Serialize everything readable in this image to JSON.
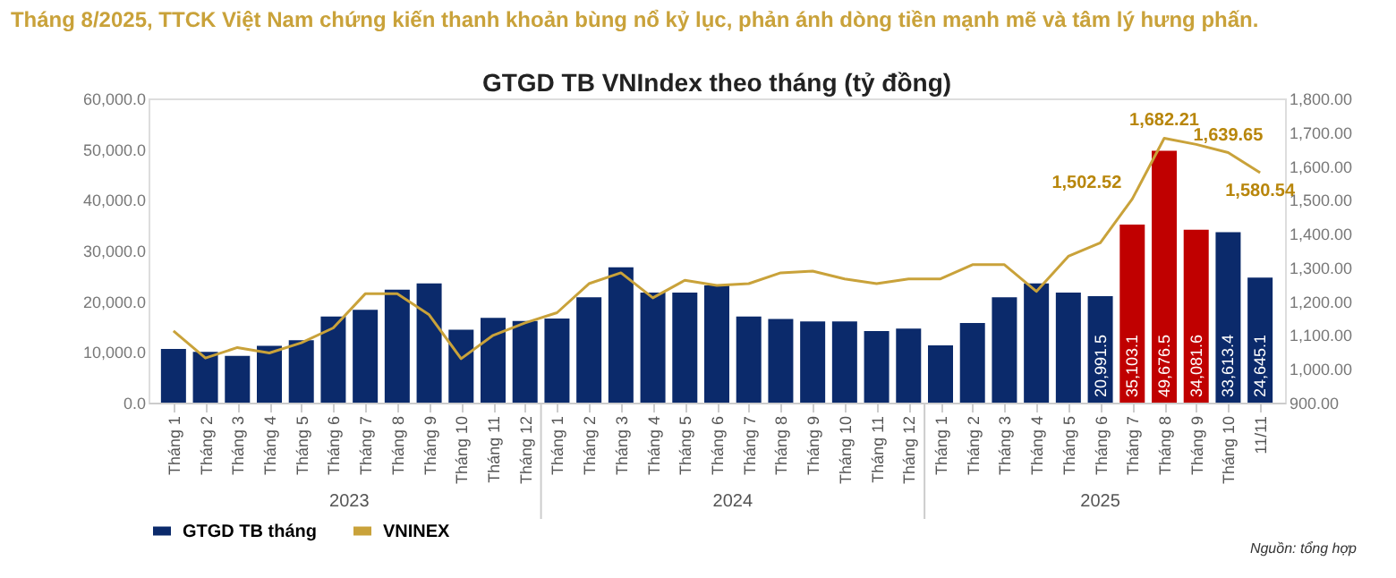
{
  "chart_data": {
    "type": "bar",
    "title": "Tháng 8/2025, TTCK Việt Nam chứng kiến thanh khoản bùng nổ kỷ lục, phản ánh dòng tiền mạnh mẽ và tâm lý hưng phấn.",
    "subtitle": "GTGD TB VNIndex theo tháng (tỷ đồng)",
    "categories": [
      "Tháng 1",
      "Tháng 2",
      "Tháng 3",
      "Tháng 4",
      "Tháng 5",
      "Tháng 6",
      "Tháng 7",
      "Tháng 8",
      "Tháng 9",
      "Tháng 10",
      "Tháng 11",
      "Tháng 12",
      "Tháng 1",
      "Tháng 2",
      "Tháng 3",
      "Tháng 4",
      "Tháng 5",
      "Tháng 6",
      "Tháng 7",
      "Tháng 8",
      "Tháng 9",
      "Tháng 10",
      "Tháng 11",
      "Tháng 12",
      "Tháng 1",
      "Tháng 2",
      "Tháng 3",
      "Tháng 4",
      "Tháng 5",
      "Tháng 6",
      "Tháng 7",
      "Tháng 8",
      "Tháng 9",
      "Tháng 10",
      "11/11"
    ],
    "series": [
      {
        "name": "GTGD TB tháng",
        "color": "#0b2a6b",
        "colors": [
          "#0b2a6b",
          "#0b2a6b",
          "#0b2a6b",
          "#0b2a6b",
          "#0b2a6b",
          "#0b2a6b",
          "#0b2a6b",
          "#0b2a6b",
          "#0b2a6b",
          "#0b2a6b",
          "#0b2a6b",
          "#0b2a6b",
          "#0b2a6b",
          "#0b2a6b",
          "#0b2a6b",
          "#0b2a6b",
          "#0b2a6b",
          "#0b2a6b",
          "#0b2a6b",
          "#0b2a6b",
          "#0b2a6b",
          "#0b2a6b",
          "#0b2a6b",
          "#0b2a6b",
          "#0b2a6b",
          "#0b2a6b",
          "#0b2a6b",
          "#0b2a6b",
          "#0b2a6b",
          "#0b2a6b",
          "#c00000",
          "#c00000",
          "#c00000",
          "#0b2a6b",
          "#0b2a6b"
        ],
        "values": [
          10600,
          10000,
          9200,
          11200,
          12300,
          17000,
          18300,
          22300,
          23500,
          14400,
          16700,
          16100,
          16600,
          20800,
          26700,
          21700,
          21700,
          23100,
          17000,
          16500,
          16000,
          16000,
          14100,
          14600,
          11300,
          15700,
          20800,
          23500,
          21700,
          20991.5,
          35103.1,
          49676.5,
          34081.6,
          33613.4,
          24645.1
        ],
        "value_labels": [
          null,
          null,
          null,
          null,
          null,
          null,
          null,
          null,
          null,
          null,
          null,
          null,
          null,
          null,
          null,
          null,
          null,
          null,
          null,
          null,
          null,
          null,
          null,
          null,
          null,
          null,
          null,
          null,
          null,
          "20,991.5",
          "35,103.1",
          "49,676.5",
          "34,081.6",
          "33,613.4",
          "24,645.1"
        ]
      },
      {
        "name": "VNINEX",
        "type": "line",
        "axis": "y2",
        "color": "#c9a23a",
        "values": [
          1112,
          1032,
          1063,
          1047,
          1077,
          1121,
          1222,
          1222,
          1160,
          1030,
          1099,
          1136,
          1166,
          1252,
          1284,
          1210,
          1262,
          1247,
          1252,
          1284,
          1289,
          1266,
          1252,
          1266,
          1266,
          1308,
          1308,
          1229,
          1333,
          1373,
          1502.52,
          1682.21,
          1664,
          1639.65,
          1580.54
        ],
        "value_labels": [
          null,
          null,
          null,
          null,
          null,
          null,
          null,
          null,
          null,
          null,
          null,
          null,
          null,
          null,
          null,
          null,
          null,
          null,
          null,
          null,
          null,
          null,
          null,
          null,
          null,
          null,
          null,
          null,
          null,
          null,
          "1,502.52",
          "1,682.21",
          null,
          "1,639.65",
          "1,580.54"
        ]
      }
    ],
    "ylim": [
      0,
      60000
    ],
    "yticks": [
      {
        "value": 0,
        "label": "0.0"
      },
      {
        "value": 10000,
        "label": "10,000.0"
      },
      {
        "value": 20000,
        "label": "20,000.0"
      },
      {
        "value": 30000,
        "label": "30,000.0"
      },
      {
        "value": 40000,
        "label": "40,000.0"
      },
      {
        "value": 50000,
        "label": "50,000.0"
      },
      {
        "value": 60000,
        "label": "60,000.0"
      }
    ],
    "y2lim": [
      900,
      1800
    ],
    "y2ticks": [
      {
        "value": 900,
        "label": "900.00"
      },
      {
        "value": 1000,
        "label": "1,000.00"
      },
      {
        "value": 1100,
        "label": "1,100.00"
      },
      {
        "value": 1200,
        "label": "1,200.00"
      },
      {
        "value": 1300,
        "label": "1,300.00"
      },
      {
        "value": 1400,
        "label": "1,400.00"
      },
      {
        "value": 1500,
        "label": "1,500.00"
      },
      {
        "value": 1600,
        "label": "1,600.00"
      },
      {
        "value": 1700,
        "label": "1,700.00"
      },
      {
        "value": 1800,
        "label": "1,800.00"
      }
    ],
    "annotations": [
      "2023",
      "2024",
      "2025",
      "Nguồn: tổng hợp"
    ],
    "legend": "bottom"
  }
}
